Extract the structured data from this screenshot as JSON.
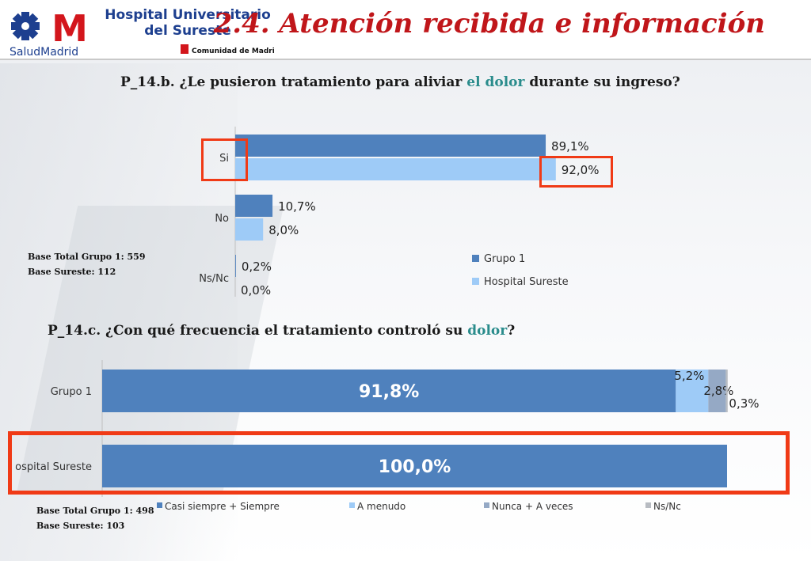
{
  "header": {
    "logo_mark": "M",
    "logo_sub": "SaludMadrid",
    "logo_line1": "Hospital Universitario",
    "logo_line2": "del Sureste",
    "logo_comunidad": "Comunidad de Madrid",
    "title": "2.4. Atención recibida e información"
  },
  "colors": {
    "title_red": "#c0161a",
    "highlight_teal": "#2a8c8c",
    "series_dark_blue": "#4f81bd",
    "series_light_blue": "#9ecbf7",
    "series_grey_blue": "#95a9c5",
    "series_grey": "#b8bcc2",
    "callout_red": "#f03a16"
  },
  "q1": {
    "title_pre": "P_14.b. ¿Le pusieron tratamiento para aliviar ",
    "title_hl": "el dolor",
    "title_post": " durante su ingreso?",
    "base1": "Base Total Grupo 1: 559",
    "base2": "Base Sureste: 112"
  },
  "q2": {
    "title_pre": "P_14.c. ¿Con qué frecuencia el tratamiento controló su ",
    "title_hl": "dolor",
    "title_post": "?",
    "base1": "Base Total Grupo 1: 498",
    "base2": "Base Sureste: 103"
  },
  "chart_data": [
    {
      "type": "bar",
      "orientation": "horizontal",
      "categories": [
        "Si",
        "No",
        "Ns/Nc"
      ],
      "series": [
        {
          "name": "Grupo 1",
          "values": [
            89.1,
            10.7,
            0.2
          ],
          "labels": [
            "89,1%",
            "10,7%",
            "0,2%"
          ],
          "color": "#4f81bd"
        },
        {
          "name": "Hospital Sureste",
          "values": [
            92.0,
            8.0,
            0.0
          ],
          "labels": [
            "92,0%",
            "8,0%",
            "0,0%"
          ],
          "color": "#9ecbf7"
        }
      ],
      "xlim": [
        0,
        100
      ],
      "legend": "right",
      "grid": false
    },
    {
      "type": "bar",
      "orientation": "horizontal",
      "stacked": true,
      "categories": [
        "Grupo 1",
        "Hospital Sureste"
      ],
      "category_labels": [
        "Grupo 1",
        "ospital Sureste"
      ],
      "series": [
        {
          "name": "Casi siempre + Siempre",
          "values": [
            91.8,
            100.0
          ],
          "labels": [
            "91,8%",
            "100,0%"
          ],
          "color": "#4f81bd"
        },
        {
          "name": "A menudo",
          "values": [
            5.2,
            0.0
          ],
          "labels": [
            "5,2%",
            ""
          ],
          "color": "#9ecbf7"
        },
        {
          "name": "Nunca + A veces",
          "values": [
            2.8,
            0.0
          ],
          "labels": [
            "2,8%",
            ""
          ],
          "color": "#95a9c5"
        },
        {
          "name": "Ns/Nc",
          "values": [
            0.3,
            0.0
          ],
          "labels": [
            "0,3%",
            ""
          ],
          "color": "#b8bcc2"
        }
      ],
      "xlim": [
        0,
        100
      ],
      "legend": "bottom",
      "grid": false
    }
  ]
}
